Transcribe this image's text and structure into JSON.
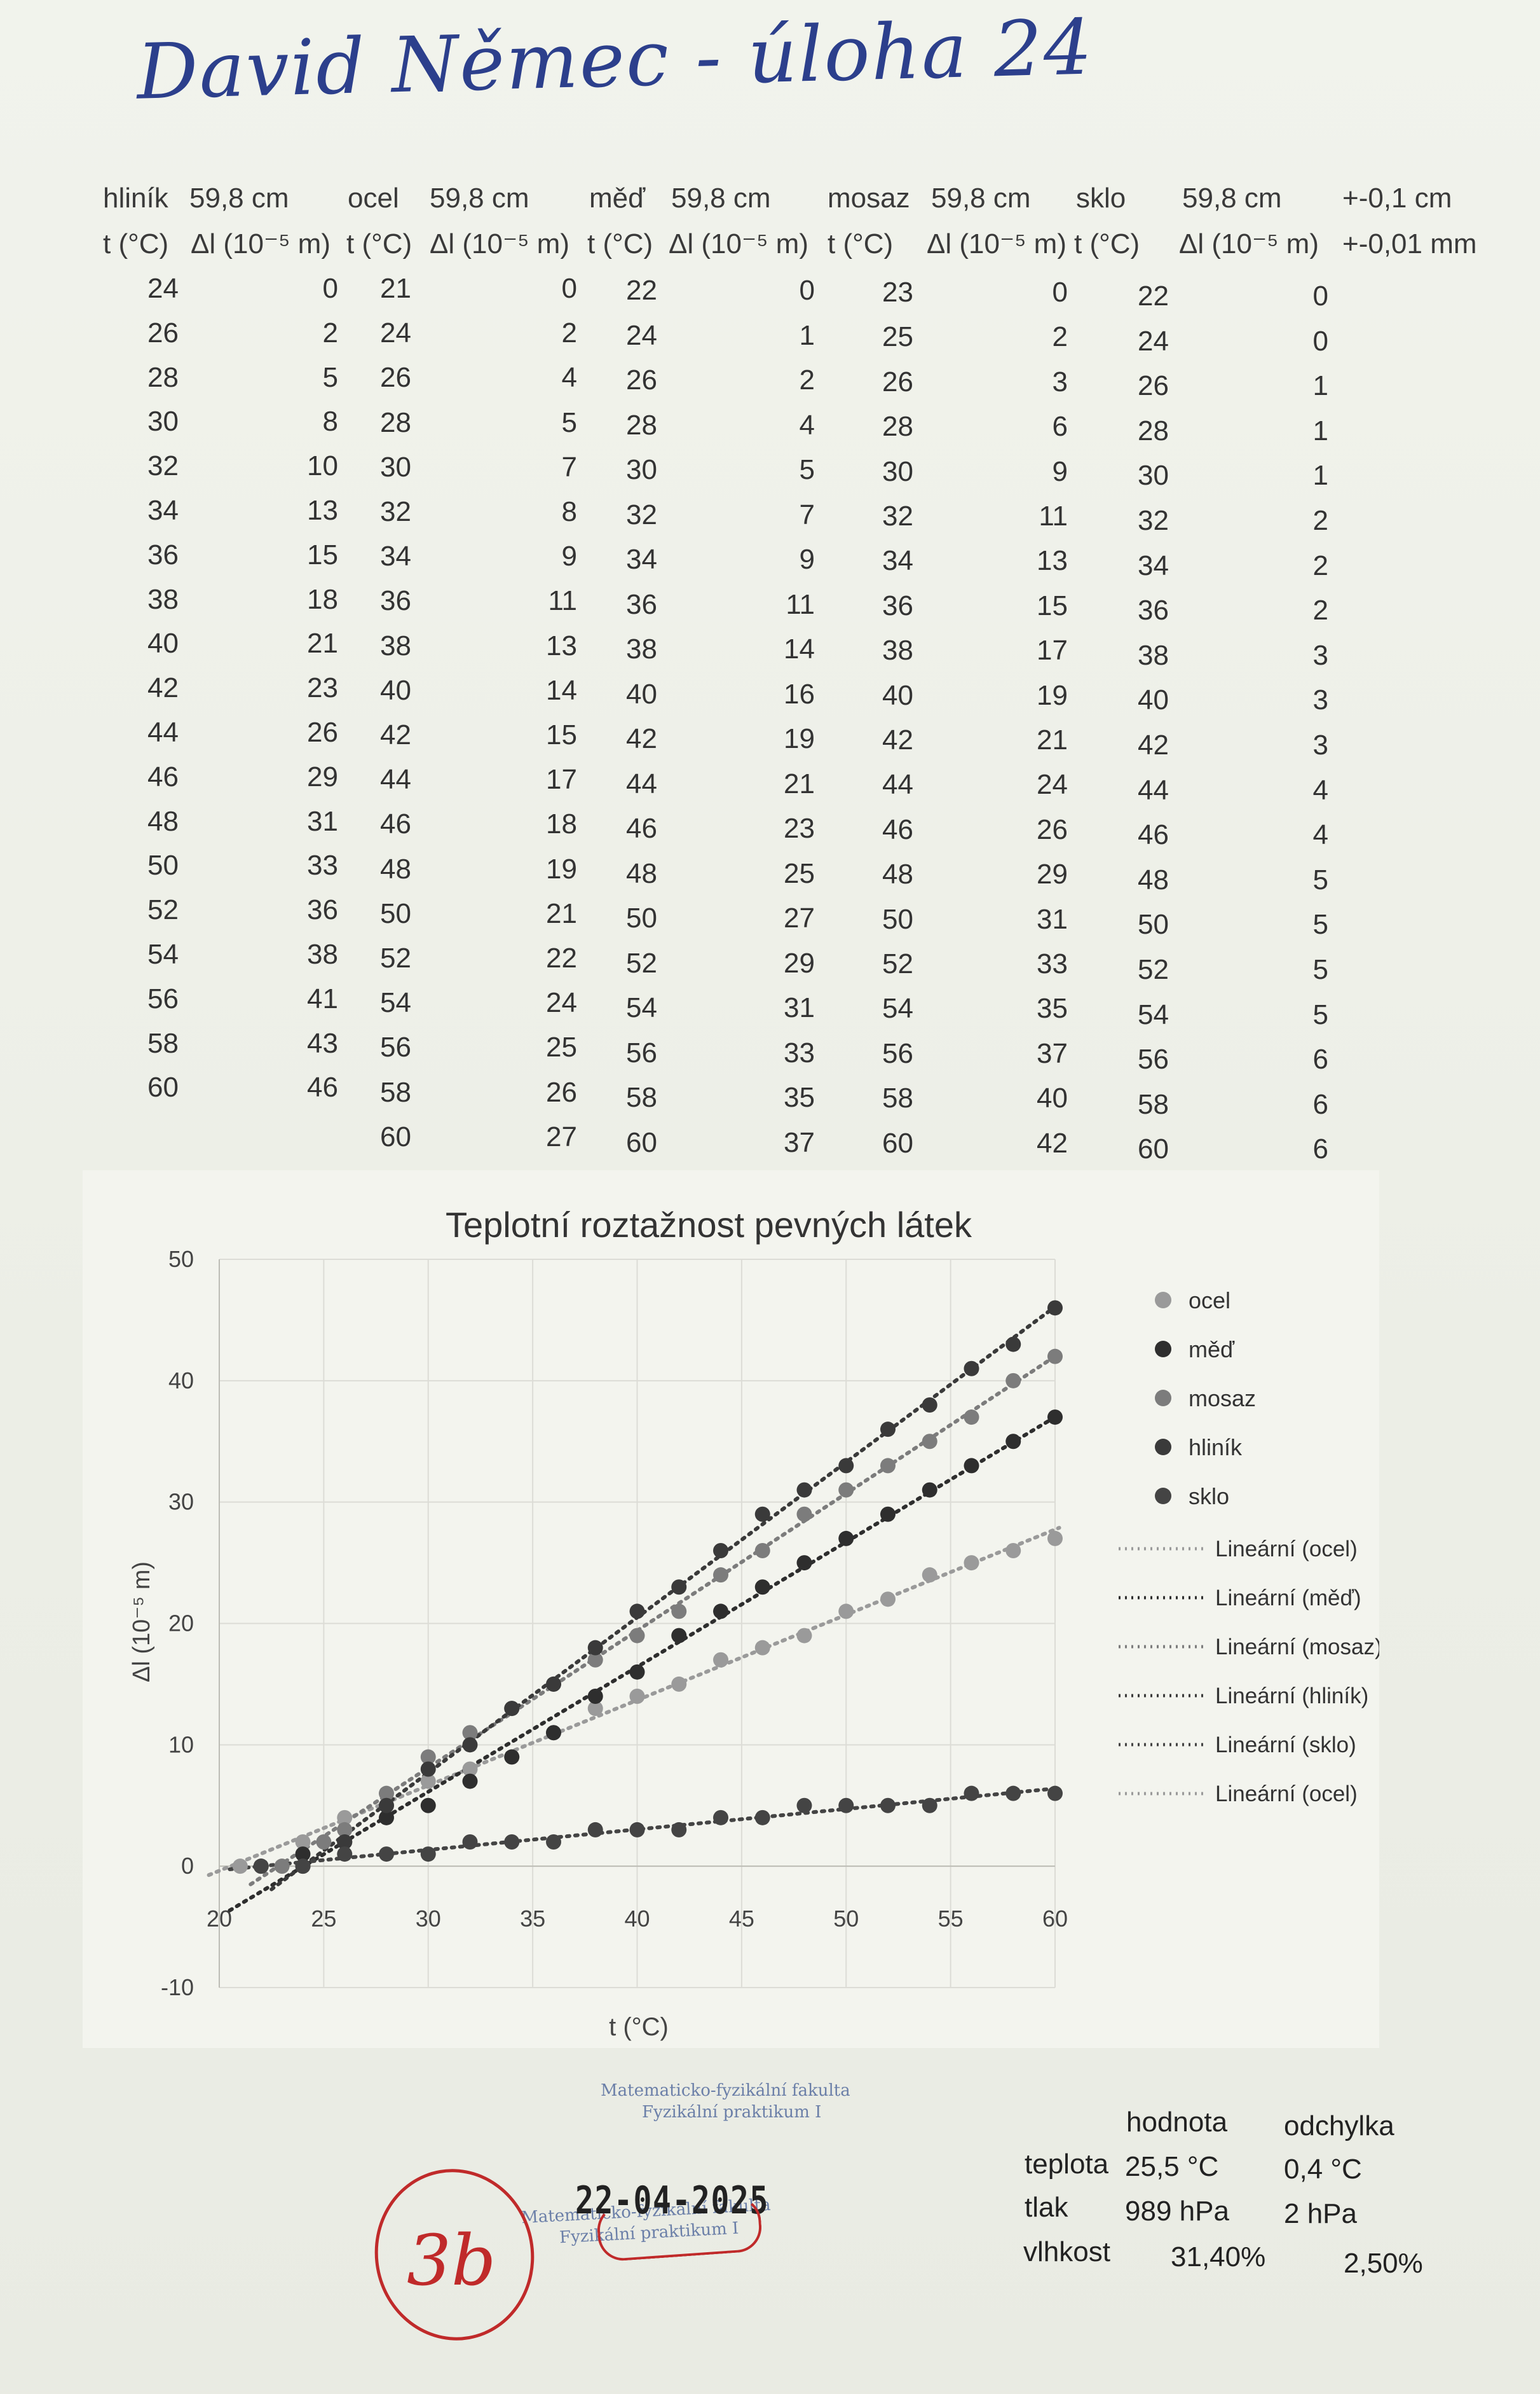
{
  "handwritten_title": "David Němec - úloha 24",
  "table": {
    "uncertainty_length": "+-0,1 cm",
    "uncertainty_delta": "+-0,01 mm",
    "t_header": "t (°C)",
    "dl_header": "Δl (10⁻⁵ m)",
    "materials": [
      {
        "name": "hliník",
        "length": "59,8 cm",
        "t": [
          "24",
          "26",
          "28",
          "30",
          "32",
          "34",
          "36",
          "38",
          "40",
          "42",
          "44",
          "46",
          "48",
          "50",
          "52",
          "54",
          "56",
          "58",
          "60"
        ],
        "dl": [
          "0",
          "2",
          "5",
          "8",
          "10",
          "13",
          "15",
          "18",
          "21",
          "23",
          "26",
          "29",
          "31",
          "33",
          "36",
          "38",
          "41",
          "43",
          "46"
        ]
      },
      {
        "name": "ocel",
        "length": "59,8 cm",
        "t": [
          "21",
          "24",
          "26",
          "28",
          "30",
          "32",
          "34",
          "36",
          "38",
          "40",
          "42",
          "44",
          "46",
          "48",
          "50",
          "52",
          "54",
          "56",
          "58",
          "60"
        ],
        "dl": [
          "0",
          "2",
          "4",
          "5",
          "7",
          "8",
          "9",
          "11",
          "13",
          "14",
          "15",
          "17",
          "18",
          "19",
          "21",
          "22",
          "24",
          "25",
          "26",
          "27"
        ]
      },
      {
        "name": "měď",
        "length": "59,8 cm",
        "t": [
          "22",
          "24",
          "26",
          "28",
          "30",
          "32",
          "34",
          "36",
          "38",
          "40",
          "42",
          "44",
          "46",
          "48",
          "50",
          "52",
          "54",
          "56",
          "58",
          "60"
        ],
        "dl": [
          "0",
          "1",
          "2",
          "4",
          "5",
          "7",
          "9",
          "11",
          "14",
          "16",
          "19",
          "21",
          "23",
          "25",
          "27",
          "29",
          "31",
          "33",
          "35",
          "37"
        ]
      },
      {
        "name": "mosaz",
        "length": "59,8 cm",
        "t": [
          "23",
          "25",
          "26",
          "28",
          "30",
          "32",
          "34",
          "36",
          "38",
          "40",
          "42",
          "44",
          "46",
          "48",
          "50",
          "52",
          "54",
          "56",
          "58",
          "60"
        ],
        "dl": [
          "0",
          "2",
          "3",
          "6",
          "9",
          "11",
          "13",
          "15",
          "17",
          "19",
          "21",
          "24",
          "26",
          "29",
          "31",
          "33",
          "35",
          "37",
          "40",
          "42"
        ]
      },
      {
        "name": "sklo",
        "length": "59,8 cm",
        "t": [
          "22",
          "24",
          "26",
          "28",
          "30",
          "32",
          "34",
          "36",
          "38",
          "40",
          "42",
          "44",
          "46",
          "48",
          "50",
          "52",
          "54",
          "56",
          "58",
          "60"
        ],
        "dl": [
          "0",
          "0",
          "1",
          "1",
          "1",
          "2",
          "2",
          "2",
          "3",
          "3",
          "3",
          "4",
          "4",
          "5",
          "5",
          "5",
          "5",
          "6",
          "6",
          "6"
        ]
      }
    ]
  },
  "chart_data": {
    "type": "scatter",
    "title": "Teplotní roztažnost pevných látek",
    "xlabel": "t (°C)",
    "ylabel": "Δl (10⁻⁵ m)",
    "xlim": [
      20,
      60
    ],
    "ylim": [
      -10,
      50
    ],
    "x_ticks": [
      "20",
      "25",
      "30",
      "35",
      "40",
      "45",
      "50",
      "55",
      "60"
    ],
    "y_ticks": [
      "-10",
      "0",
      "10",
      "20",
      "30",
      "40",
      "50"
    ],
    "grid": true,
    "legend_position": "right",
    "series": [
      {
        "name": "ocel",
        "color": "#9a9a9a",
        "x": [
          21,
          24,
          26,
          28,
          30,
          32,
          34,
          36,
          38,
          40,
          42,
          44,
          46,
          48,
          50,
          52,
          54,
          56,
          58,
          60
        ],
        "y": [
          0,
          2,
          4,
          5,
          7,
          8,
          9,
          11,
          13,
          14,
          15,
          17,
          18,
          19,
          21,
          22,
          24,
          25,
          26,
          27
        ]
      },
      {
        "name": "měď",
        "color": "#2e2e2e",
        "x": [
          22,
          24,
          26,
          28,
          30,
          32,
          34,
          36,
          38,
          40,
          42,
          44,
          46,
          48,
          50,
          52,
          54,
          56,
          58,
          60
        ],
        "y": [
          0,
          1,
          2,
          4,
          5,
          7,
          9,
          11,
          14,
          16,
          19,
          21,
          23,
          25,
          27,
          29,
          31,
          33,
          35,
          37
        ]
      },
      {
        "name": "mosaz",
        "color": "#7c7c7c",
        "x": [
          23,
          25,
          26,
          28,
          30,
          32,
          34,
          36,
          38,
          40,
          42,
          44,
          46,
          48,
          50,
          52,
          54,
          56,
          58,
          60
        ],
        "y": [
          0,
          2,
          3,
          6,
          9,
          11,
          13,
          15,
          17,
          19,
          21,
          24,
          26,
          29,
          31,
          33,
          35,
          37,
          40,
          42
        ]
      },
      {
        "name": "hliník",
        "color": "#3a3a3a",
        "x": [
          24,
          26,
          28,
          30,
          32,
          34,
          36,
          38,
          40,
          42,
          44,
          46,
          48,
          50,
          52,
          54,
          56,
          58,
          60
        ],
        "y": [
          0,
          2,
          5,
          8,
          10,
          13,
          15,
          18,
          21,
          23,
          26,
          29,
          31,
          33,
          36,
          38,
          41,
          43,
          46
        ]
      },
      {
        "name": "sklo",
        "color": "#444444",
        "x": [
          22,
          24,
          26,
          28,
          30,
          32,
          34,
          36,
          38,
          40,
          42,
          44,
          46,
          48,
          50,
          52,
          54,
          56,
          58,
          60
        ],
        "y": [
          0,
          0,
          1,
          1,
          1,
          2,
          2,
          2,
          3,
          3,
          3,
          4,
          4,
          5,
          5,
          5,
          5,
          6,
          6,
          6
        ]
      }
    ],
    "trendline_legend": [
      {
        "label": "Lineární (ocel)",
        "color": "#9a9a9a"
      },
      {
        "label": "Lineární (měď)",
        "color": "#2e2e2e"
      },
      {
        "label": "Lineární (mosaz)",
        "color": "#7c7c7c"
      },
      {
        "label": "Lineární (hliník)",
        "color": "#3a3a3a"
      },
      {
        "label": "Lineární (sklo)",
        "color": "#444444"
      },
      {
        "label": "Lineární (ocel)",
        "color": "#9a9a9a"
      }
    ]
  },
  "stamp": {
    "line1": "Matematicko-fyzikální fakulta",
    "line2": "Fyzikální praktikum I",
    "date": "22-04-2025"
  },
  "grade": "3b",
  "conditions": {
    "header_value": "hodnota",
    "header_deviation": "odchylka",
    "rows": [
      {
        "label": "teplota",
        "value": "25,5 °C",
        "deviation": "0,4 °C"
      },
      {
        "label": "tlak",
        "value": "989 hPa",
        "deviation": "2 hPa"
      },
      {
        "label": "vlhkost",
        "value": "31,40%",
        "deviation": "2,50%"
      }
    ]
  }
}
